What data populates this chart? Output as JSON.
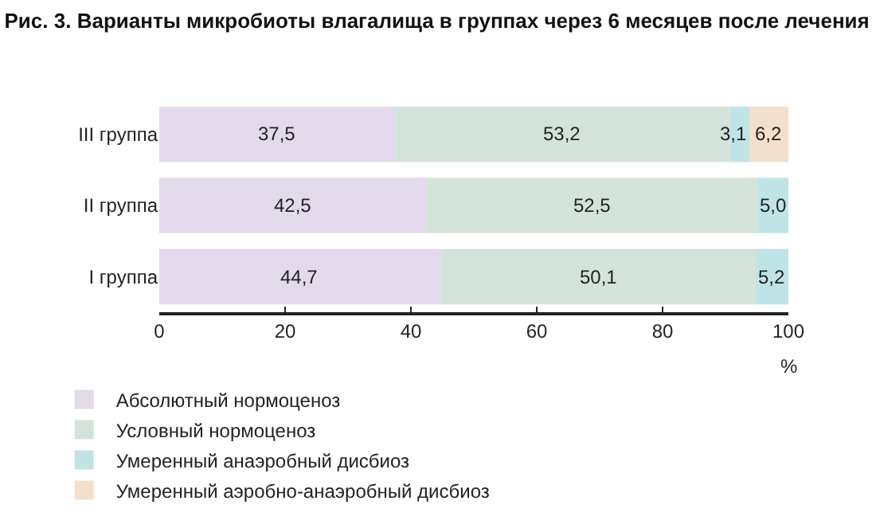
{
  "chart_data": {
    "type": "bar",
    "orientation": "horizontal",
    "stacked": true,
    "title": "Рис. 3. Варианты микробиоты влагалища в группах через 6 месяцев после лечения",
    "xlabel": "%",
    "categories": [
      "III группа",
      "II группа",
      "I группа"
    ],
    "series": [
      {
        "name": "Абсолютный нормоценоз",
        "color": "#e2d9ea",
        "values": [
          37.5,
          42.5,
          44.7
        ],
        "value_labels": [
          "37,5",
          "42,5",
          "44,7"
        ]
      },
      {
        "name": "Условный нормоценоз",
        "color": "#d3e3da",
        "values": [
          53.2,
          52.5,
          50.1
        ],
        "value_labels": [
          "53,2",
          "52,5",
          "50,1"
        ]
      },
      {
        "name": "Умеренный анаэробный дисбиоз",
        "color": "#bfe4e5",
        "values": [
          3.1,
          5.0,
          5.2
        ],
        "value_labels": [
          "3,1",
          "5,0",
          "5,2"
        ]
      },
      {
        "name": "Умеренный аэробно-анаэробный дисбиоз",
        "color": "#f3dfcb",
        "values": [
          6.2,
          null,
          null
        ],
        "value_labels": [
          "6,2",
          null,
          null
        ]
      }
    ],
    "xlim": [
      0,
      100
    ],
    "xticks": [
      0,
      20,
      40,
      60,
      80,
      100
    ],
    "grid": false,
    "legend": "bottom"
  }
}
